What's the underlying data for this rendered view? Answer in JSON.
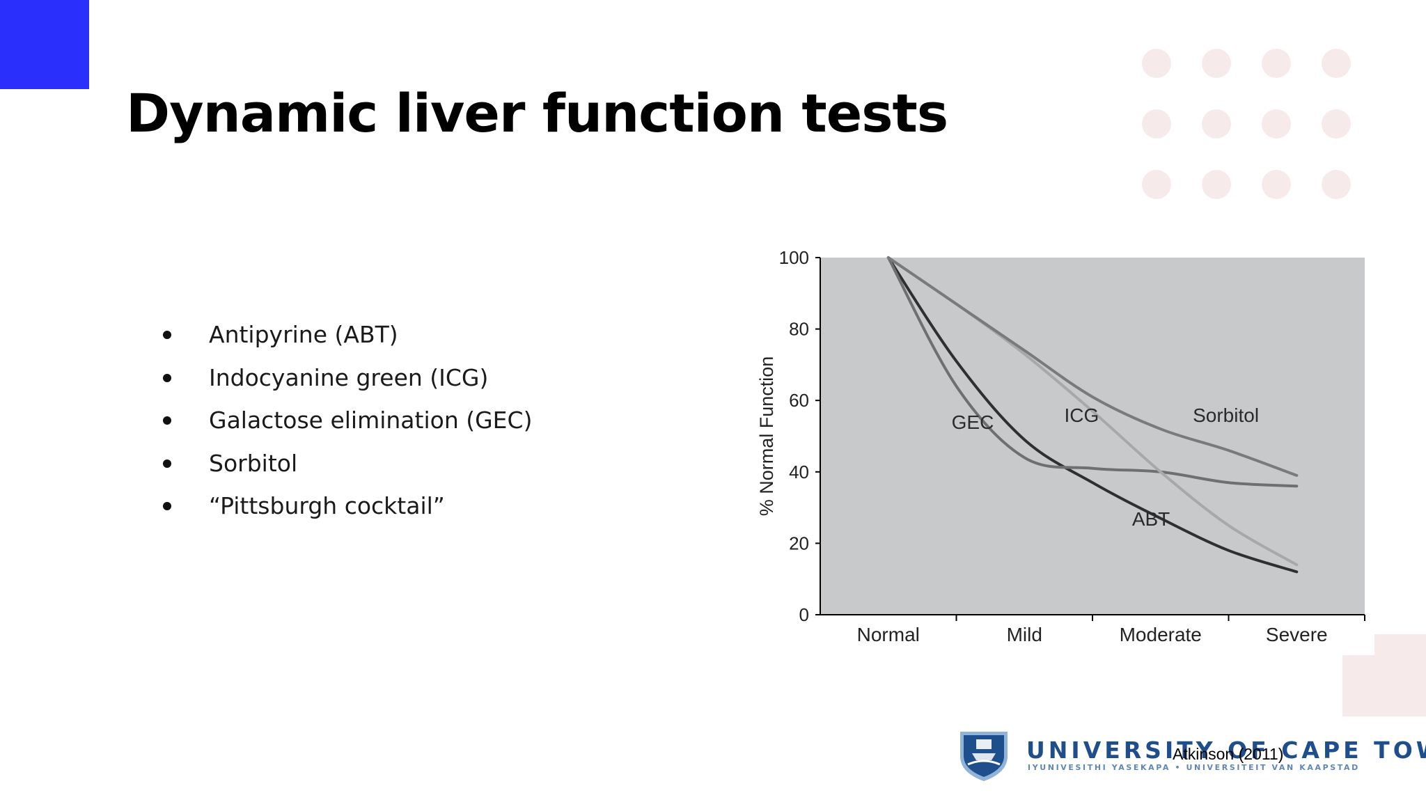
{
  "slide": {
    "title": "Dynamic liver function tests",
    "accent_color": "#2b2ffb",
    "decor_color": "#f7eaea"
  },
  "bullets": [
    "Antipyrine (ABT)",
    "Indocyanine green (ICG)",
    "Galactose elimination (GEC)",
    "Sorbitol",
    "“Pittsburgh cocktail”"
  ],
  "chart_data": {
    "type": "line",
    "title": "",
    "xlabel": "",
    "ylabel": "% Normal Function",
    "categories": [
      "Normal",
      "Mild",
      "Moderate",
      "Severe"
    ],
    "ylim": [
      0,
      100
    ],
    "yticks": [
      0,
      20,
      40,
      60,
      80,
      100
    ],
    "grid": false,
    "background": "#c8c9cb",
    "series": [
      {
        "name": "ABT",
        "color": "#2f2f2f",
        "x": [
          0,
          0.5,
          1,
          1.5,
          2,
          2.5,
          3
        ],
        "values": [
          100,
          71,
          49,
          37,
          27,
          18,
          12
        ]
      },
      {
        "name": "GEC",
        "color": "#6f6f6f",
        "x": [
          0,
          0.5,
          1,
          1.5,
          2,
          2.5,
          3
        ],
        "values": [
          100,
          64,
          44,
          41,
          40,
          37,
          36
        ]
      },
      {
        "name": "ICG",
        "color": "#a8a8a8",
        "x": [
          0,
          0.5,
          1,
          1.5,
          2,
          2.5,
          3
        ],
        "values": [
          100,
          87,
          73,
          57,
          40,
          25,
          14
        ]
      },
      {
        "name": "Sorbitol",
        "color": "#7a7a7a",
        "x": [
          0,
          0.5,
          1,
          1.5,
          2,
          2.5,
          3
        ],
        "values": [
          100,
          87,
          74,
          61,
          52,
          46,
          39
        ]
      }
    ],
    "line_labels": [
      {
        "series": "GEC",
        "x": 0.62,
        "y": 52
      },
      {
        "series": "ICG",
        "x": 1.42,
        "y": 54
      },
      {
        "series": "Sorbitol",
        "x": 2.48,
        "y": 54
      },
      {
        "series": "ABT",
        "x": 1.93,
        "y": 25
      }
    ]
  },
  "footer": {
    "university_name": "UNIVERSITY OF CAPE TOWN",
    "university_subtitle": "IYUNIVESITHI YASEKAPA • UNIVERSITEIT VAN KAAPSTAD",
    "citation": "Atkinson (2011)",
    "logo_colors": {
      "shield": "#1e4e8c",
      "trim": "#8fb3d9"
    }
  }
}
